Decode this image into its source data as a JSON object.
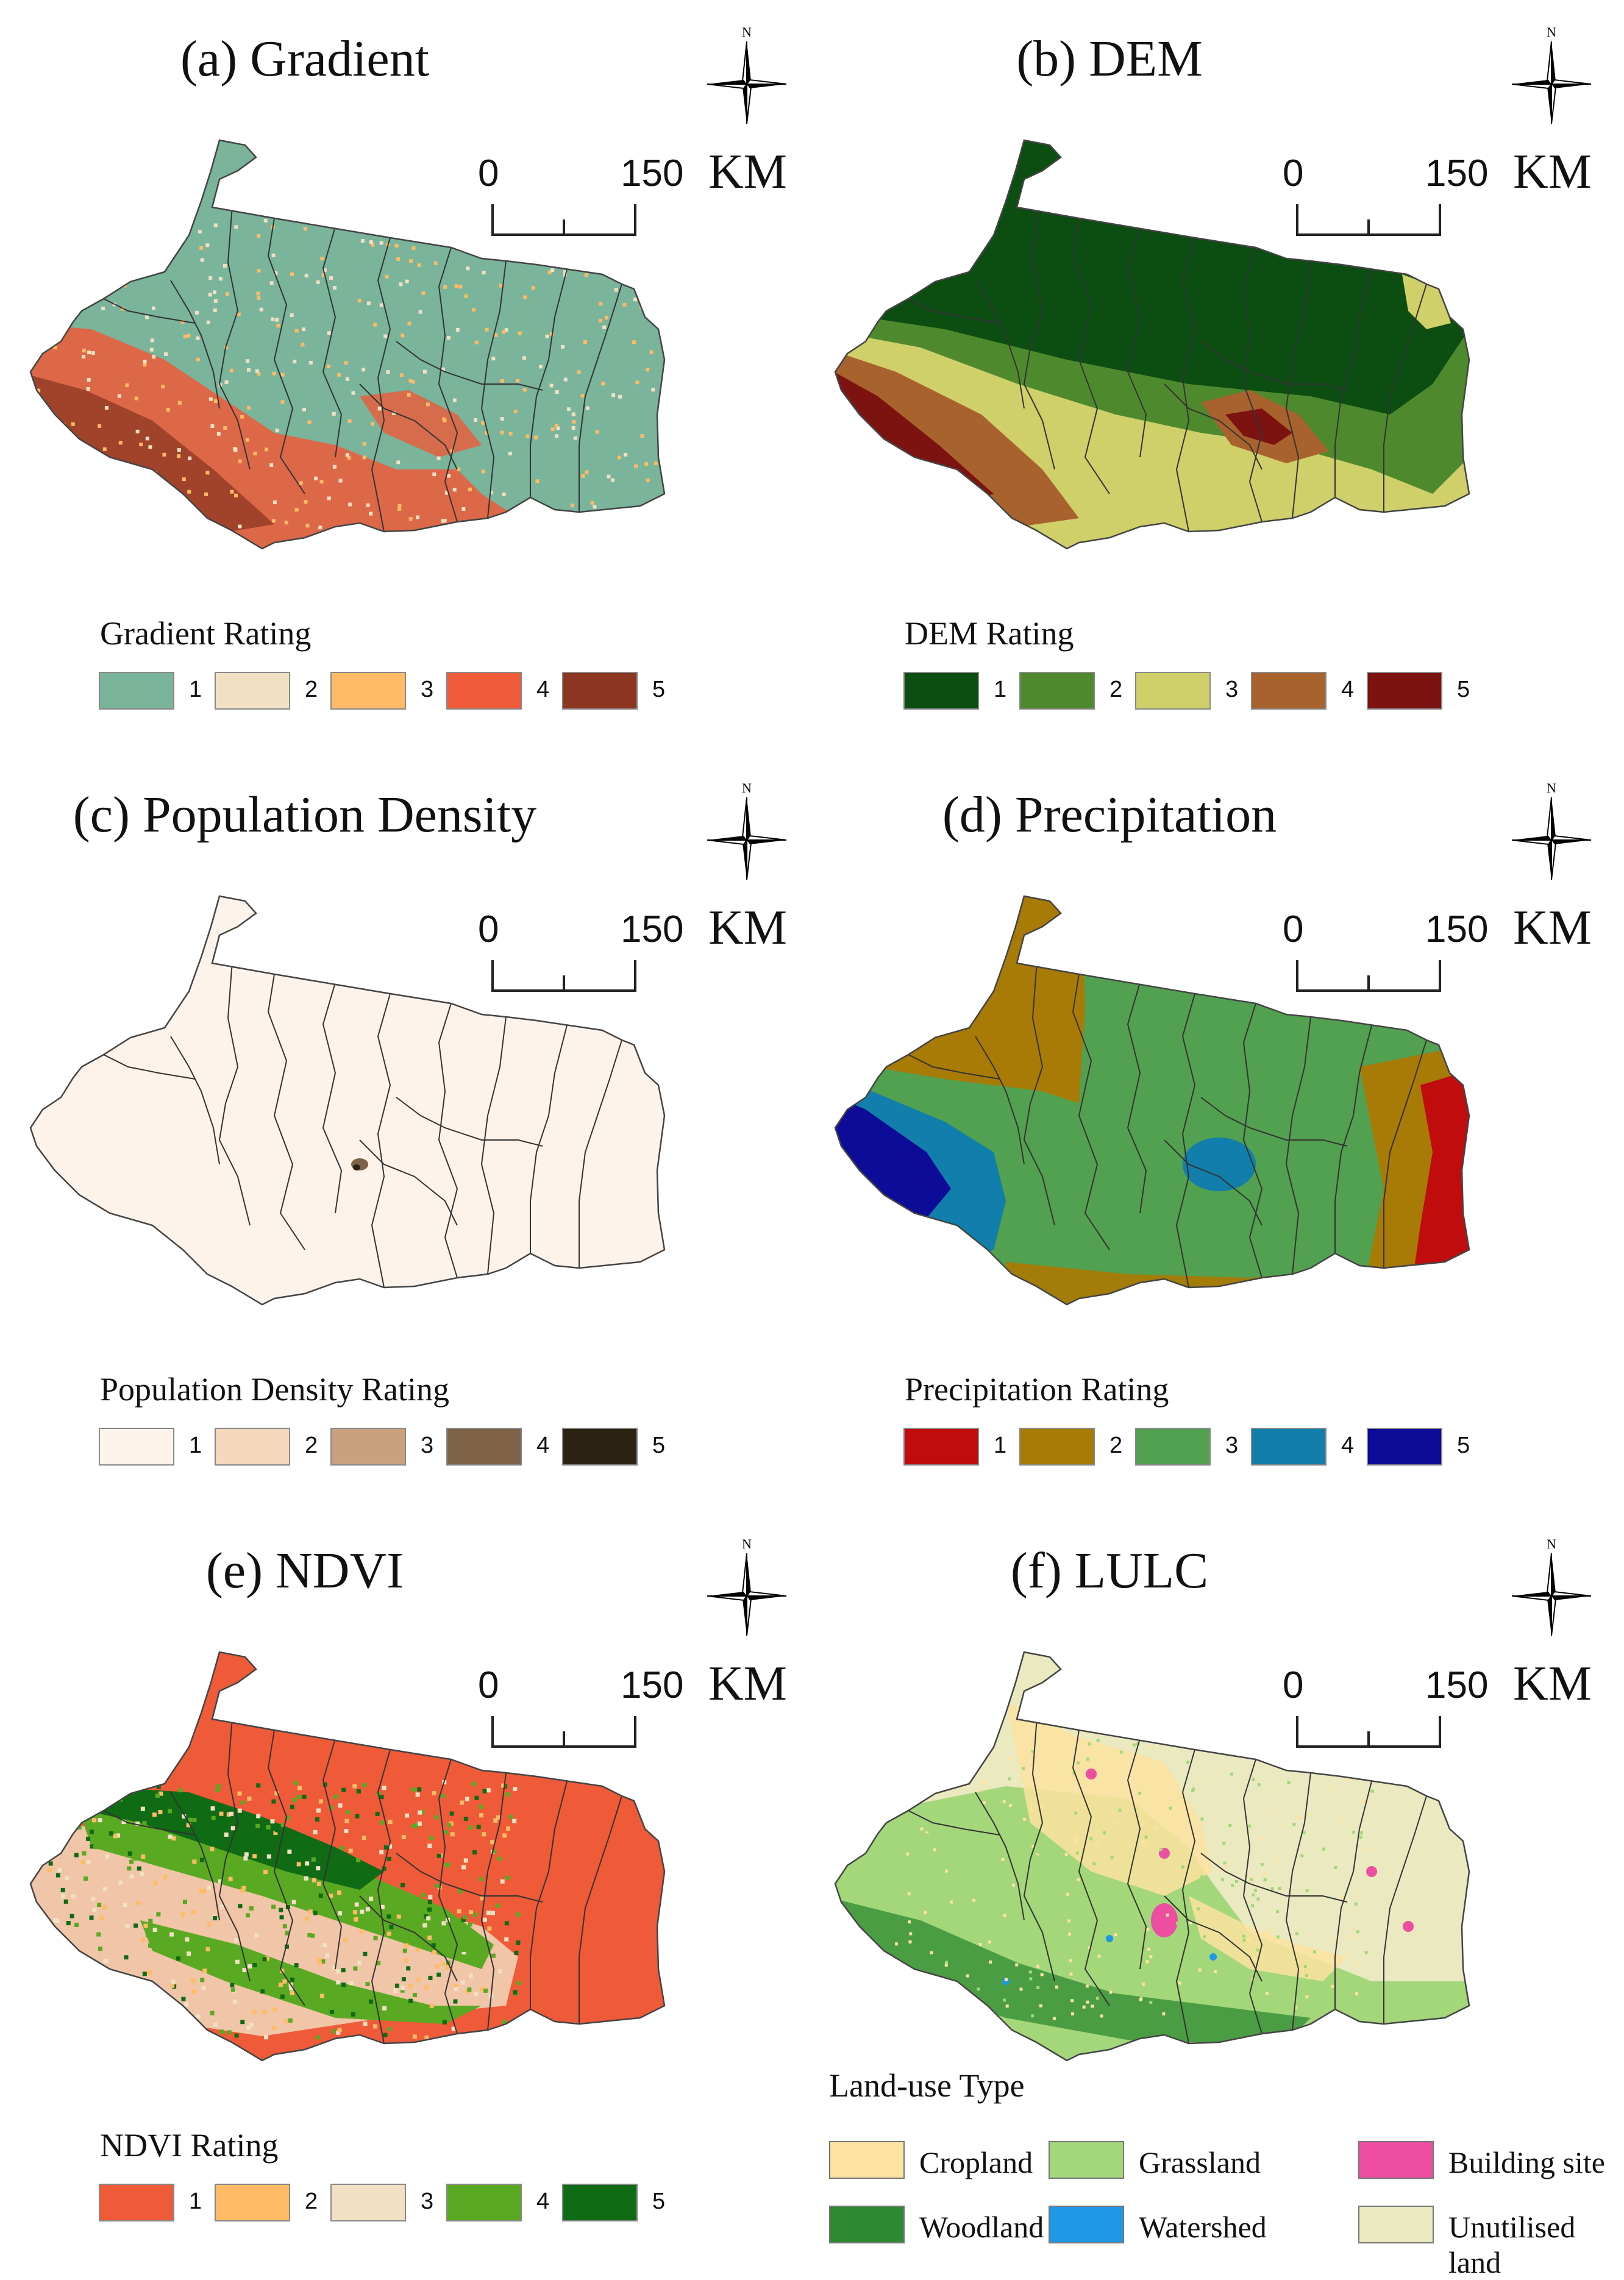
{
  "panels": [
    {
      "id": "a",
      "title": "(a) Gradient",
      "legend_title": "Gradient Rating",
      "legend": [
        {
          "label": "1",
          "color": "#79b49b"
        },
        {
          "label": "2",
          "color": "#f1e0c4"
        },
        {
          "label": "3",
          "color": "#ffbb66"
        },
        {
          "label": "4",
          "color": "#ef5a39"
        },
        {
          "label": "5",
          "color": "#8c3520"
        }
      ],
      "base_color": "#79b49b"
    },
    {
      "id": "b",
      "title": "(b) DEM",
      "legend_title": "DEM Rating",
      "legend": [
        {
          "label": "1",
          "color": "#0c4d12"
        },
        {
          "label": "2",
          "color": "#4e8a2d"
        },
        {
          "label": "3",
          "color": "#cfd06a"
        },
        {
          "label": "4",
          "color": "#a8622e"
        },
        {
          "label": "5",
          "color": "#7c1310"
        }
      ],
      "base_color": "#0c4d12"
    },
    {
      "id": "c",
      "title": "(c) Population Density",
      "legend_title": "Population Density Rating",
      "legend": [
        {
          "label": "1",
          "color": "#fdf3ea"
        },
        {
          "label": "2",
          "color": "#f4d7bd"
        },
        {
          "label": "3",
          "color": "#caa17e"
        },
        {
          "label": "4",
          "color": "#7d6248"
        },
        {
          "label": "5",
          "color": "#2b2212"
        }
      ],
      "base_color": "#fdf3ea"
    },
    {
      "id": "d",
      "title": "(d) Precipitation",
      "legend_title": "Precipitation Rating",
      "legend": [
        {
          "label": "1",
          "color": "#c00c0c"
        },
        {
          "label": "2",
          "color": "#a87a06"
        },
        {
          "label": "3",
          "color": "#52a150"
        },
        {
          "label": "4",
          "color": "#117eab"
        },
        {
          "label": "5",
          "color": "#0c0c98"
        }
      ],
      "base_color": "#52a150"
    },
    {
      "id": "e",
      "title": "(e) NDVI",
      "legend_title": "NDVI Rating",
      "legend": [
        {
          "label": "1",
          "color": "#ef5a39"
        },
        {
          "label": "2",
          "color": "#ffbb66"
        },
        {
          "label": "3",
          "color": "#f1e0c4"
        },
        {
          "label": "4",
          "color": "#5aa922"
        },
        {
          "label": "5",
          "color": "#0f6b14"
        }
      ],
      "base_color": "#ef5a39"
    },
    {
      "id": "f",
      "title": "(f) LULC",
      "legend_title": "Land-use Type",
      "legend": [
        {
          "label": "Cropland",
          "color": "#fde3a0"
        },
        {
          "label": "Grassland",
          "color": "#a3d77a"
        },
        {
          "label": "Building site",
          "color": "#ee4ea2"
        },
        {
          "label": "Woodland",
          "color": "#2e8a32"
        },
        {
          "label": "Watershed",
          "color": "#1e98e6"
        },
        {
          "label": "Unutilised land",
          "color": "#ebe9c0"
        }
      ],
      "base_color": "#ebe9c0"
    }
  ],
  "scale": {
    "start": "0",
    "end": "150",
    "unit": "KM"
  },
  "north_label": "N"
}
